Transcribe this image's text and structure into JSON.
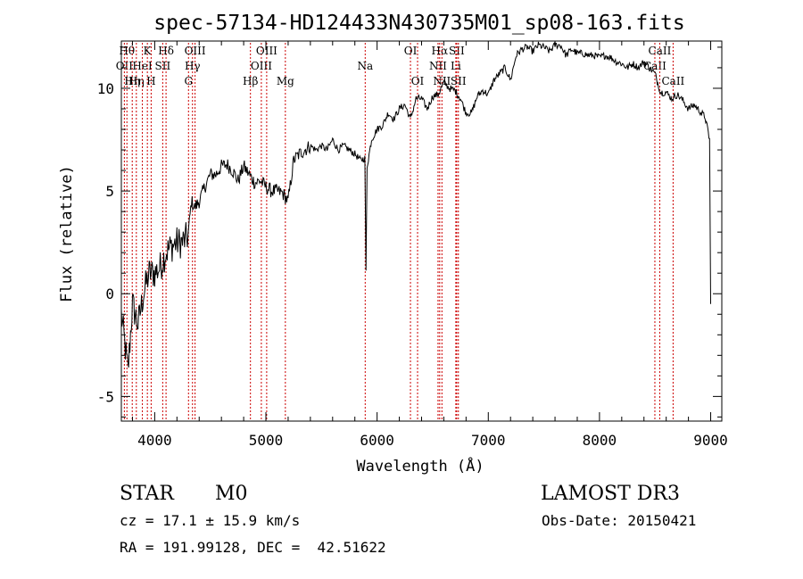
{
  "chart_data": {
    "type": "line",
    "title": "spec-57134-HD124433N430735M01_sp08-163.fits",
    "xlabel": "Wavelength (Å)",
    "ylabel": "Flux (relative)",
    "xlim": [
      3700,
      9100
    ],
    "ylim": [
      -6.2,
      12.3
    ],
    "x_ticks": [
      4000,
      5000,
      6000,
      7000,
      8000,
      9000
    ],
    "x_tick_labels": [
      "4000",
      "5000",
      "6000",
      "7000",
      "8000",
      "9000"
    ],
    "y_ticks": [
      -5,
      0,
      5,
      10
    ],
    "y_tick_labels": [
      "-5",
      "0",
      "5",
      "10"
    ],
    "series": [
      {
        "name": "spectrum",
        "color": "#000000",
        "x": [
          3700,
          3760,
          3800,
          3850,
          3900,
          3950,
          4000,
          4050,
          4100,
          4150,
          4200,
          4250,
          4300,
          4330,
          4360,
          4400,
          4450,
          4500,
          4550,
          4600,
          4650,
          4700,
          4750,
          4800,
          4850,
          4900,
          4950,
          5000,
          5050,
          5100,
          5150,
          5200,
          5250,
          5300,
          5350,
          5400,
          5450,
          5500,
          5550,
          5600,
          5650,
          5700,
          5750,
          5800,
          5850,
          5890,
          5900,
          5910,
          5950,
          6000,
          6050,
          6100,
          6150,
          6200,
          6250,
          6300,
          6350,
          6400,
          6450,
          6500,
          6550,
          6600,
          6650,
          6700,
          6750,
          6800,
          6850,
          6900,
          6950,
          7000,
          7050,
          7100,
          7150,
          7200,
          7250,
          7300,
          7350,
          7400,
          7450,
          7500,
          7550,
          7600,
          7650,
          7700,
          7750,
          7800,
          7850,
          7900,
          7950,
          8000,
          8050,
          8100,
          8150,
          8200,
          8250,
          8300,
          8350,
          8400,
          8450,
          8500,
          8550,
          8600,
          8650,
          8700,
          8750,
          8800,
          8850,
          8900,
          8950,
          8990,
          9000
        ],
        "y": [
          -1.0,
          -3.8,
          -0.5,
          -1.5,
          0.0,
          1.0,
          1.0,
          1.3,
          2.0,
          2.3,
          2.5,
          2.5,
          2.8,
          4.5,
          4.2,
          4.5,
          5.2,
          5.8,
          5.8,
          6.2,
          6.3,
          6.0,
          5.5,
          6.2,
          5.8,
          5.4,
          5.5,
          5.2,
          5.0,
          5.0,
          4.9,
          4.5,
          6.5,
          6.8,
          7.0,
          7.2,
          7.0,
          7.2,
          7.0,
          7.5,
          7.0,
          7.2,
          7.0,
          6.8,
          6.5,
          6.6,
          1.0,
          6.2,
          7.5,
          8.0,
          8.2,
          8.8,
          8.5,
          9.0,
          9.2,
          8.5,
          9.5,
          9.5,
          9.0,
          9.6,
          9.7,
          10.3,
          10.0,
          9.9,
          9.5,
          8.8,
          8.8,
          9.6,
          9.9,
          9.7,
          10.4,
          10.7,
          11.0,
          10.4,
          11.6,
          11.9,
          12.0,
          11.8,
          12.1,
          12.0,
          11.8,
          12.1,
          12.1,
          11.6,
          11.9,
          11.7,
          11.7,
          11.6,
          11.6,
          11.5,
          11.6,
          11.5,
          11.3,
          11.2,
          11.0,
          11.2,
          11.0,
          11.3,
          11.0,
          10.7,
          9.8,
          9.8,
          9.5,
          9.7,
          9.4,
          9.0,
          9.2,
          8.9,
          8.6,
          7.5,
          -0.5
        ]
      }
    ],
    "line_markers": [
      {
        "wave": 3727,
        "label": "OII",
        "row": 2
      },
      {
        "wave": 3750,
        "label": "Hθ",
        "row": 1
      },
      {
        "wave": 3798,
        "label": "Hη",
        "row": 3
      },
      {
        "wave": 3835,
        "label": "Hη",
        "row": 3
      },
      {
        "wave": 3889,
        "label": "HeI",
        "row": 2
      },
      {
        "wave": 3934,
        "label": "K",
        "row": 1
      },
      {
        "wave": 3968,
        "label": "H",
        "row": 3
      },
      {
        "wave": 4072,
        "label": "SII",
        "row": 2
      },
      {
        "wave": 4102,
        "label": "Hδ",
        "row": 1
      },
      {
        "wave": 4304,
        "label": "G",
        "row": 3
      },
      {
        "wave": 4340,
        "label": "Hγ",
        "row": 2
      },
      {
        "wave": 4363,
        "label": "OIII",
        "row": 1
      },
      {
        "wave": 4861,
        "label": "Hβ",
        "row": 3
      },
      {
        "wave": 4959,
        "label": "OIII",
        "row": 2
      },
      {
        "wave": 5007,
        "label": "OIII",
        "row": 1
      },
      {
        "wave": 5175,
        "label": "Mg",
        "row": 3
      },
      {
        "wave": 5893,
        "label": "Na",
        "row": 2
      },
      {
        "wave": 6300,
        "label": "OI",
        "row": 1
      },
      {
        "wave": 6364,
        "label": "OI",
        "row": 3
      },
      {
        "wave": 6548,
        "label": "NII",
        "row": 2
      },
      {
        "wave": 6563,
        "label": "Hα",
        "row": 1
      },
      {
        "wave": 6583,
        "label": "NII",
        "row": 3
      },
      {
        "wave": 6708,
        "label": "Li",
        "row": 2
      },
      {
        "wave": 6716,
        "label": "SII",
        "row": 1
      },
      {
        "wave": 6731,
        "label": "SII",
        "row": 3
      },
      {
        "wave": 8498,
        "label": "CaII",
        "row": 2
      },
      {
        "wave": 8542,
        "label": "CaII",
        "row": 1
      },
      {
        "wave": 8662,
        "label": "CaII",
        "row": 3
      }
    ],
    "marker_color": "#cc0000"
  },
  "info": {
    "class_label": "STAR",
    "subclass_label": "M0",
    "survey_label": "LAMOST DR3",
    "cz_text": "cz = 17.1 ± 15.9 km/s",
    "obsdate_text": "Obs-Date: 20150421",
    "radec_text": "RA = 191.99128, DEC =  42.51622"
  }
}
